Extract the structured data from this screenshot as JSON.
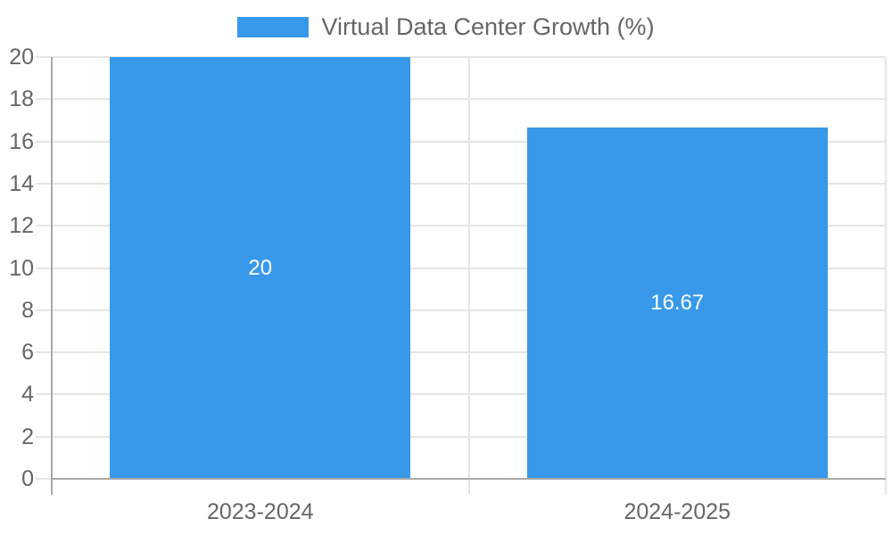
{
  "chart_data": {
    "type": "bar",
    "title": "",
    "categories": [
      "2023-2024",
      "2024-2025"
    ],
    "series": [
      {
        "name": "Virtual Data Center Growth (%)",
        "values": [
          20,
          16.67
        ],
        "color": "#3899EB"
      }
    ],
    "value_labels": [
      "20",
      "16.67"
    ],
    "ylim": [
      0,
      20
    ],
    "yticks": [
      0,
      2,
      4,
      6,
      8,
      10,
      12,
      14,
      16,
      18,
      20
    ],
    "xlabel": "",
    "ylabel": "",
    "grid": true,
    "legend_position": "top",
    "colors": {
      "grid": "#e5e5e5",
      "axis": "#a9a9a9",
      "tick_text": "#666666",
      "value_label_text": "#ffffff",
      "legend_text": "#666666"
    }
  }
}
